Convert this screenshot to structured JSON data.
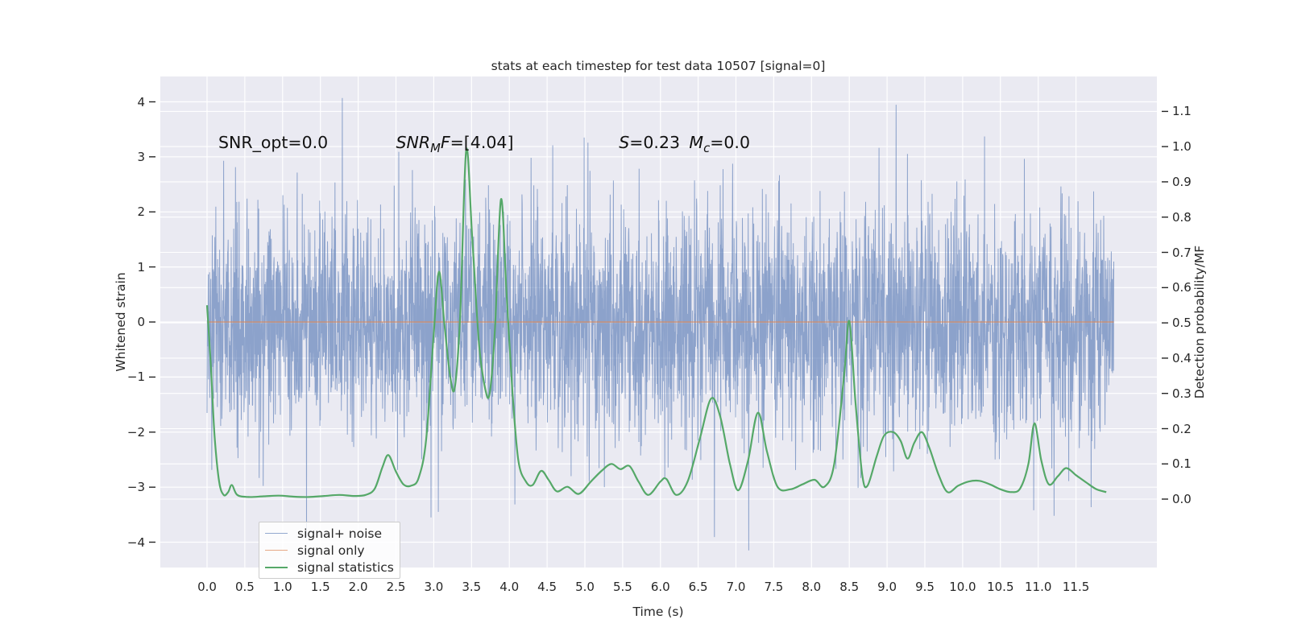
{
  "title": "stats at each timestep for test data 10507 [signal=0]",
  "colors": {
    "background": "#ffffff",
    "panel": "#eaeaf2",
    "grid": "#ffffff",
    "tick_mark": "#262626",
    "text": "#262626",
    "noise_blue": "#4C72B0",
    "signal_salmon": "#DD8452",
    "statistic_green": "#55A868",
    "legend_bg": "rgba(255,255,255,0.85)",
    "legend_border": "#cccccc"
  },
  "legend": {
    "position": "lower left",
    "entries": [
      {
        "label": "signal+ noise",
        "color": "#4C72B0",
        "alpha": 0.6,
        "line_width": 1.6
      },
      {
        "label": "signal only",
        "color": "#DD8452",
        "alpha": 0.7,
        "line_width": 1.6
      },
      {
        "label": "signal statistics",
        "color": "#55A868",
        "alpha": 1.0,
        "line_width": 2.0
      }
    ]
  },
  "chart_data": {
    "type": "line",
    "title": "stats at each timestep for test data 10507 [signal=0]",
    "xlabel": "Time (s)",
    "ylabel_left": "Whitened strain",
    "ylabel_right": "Detection probability/MF",
    "grid": true,
    "xlim": [
      -0.618,
      12.57
    ],
    "ylim_left": [
      -4.46,
      4.46
    ],
    "ylim_right": [
      -0.194,
      1.199
    ],
    "x_ticks": {
      "values": [
        0,
        0.5,
        1,
        1.5,
        2,
        2.5,
        3,
        3.5,
        4,
        4.5,
        5,
        5.5,
        6,
        6.5,
        7,
        7.5,
        8,
        8.5,
        9,
        9.5,
        10,
        10.5,
        11,
        11.5
      ],
      "labels": [
        "0.0",
        "0.5",
        "1.0",
        "1.5",
        "2.0",
        "2.5",
        "3.0",
        "3.5",
        "4.0",
        "4.5",
        "5.0",
        "5.5",
        "6.0",
        "6.5",
        "7.0",
        "7.5",
        "8.0",
        "8.5",
        "9.0",
        "9.5",
        "10.0",
        "10.5",
        "11.0",
        "11.5"
      ]
    },
    "left_ticks": {
      "values": [
        4,
        3,
        2,
        1,
        0,
        -1,
        -2,
        -3,
        -4
      ],
      "labels": [
        "4",
        "3",
        "2",
        "1",
        "0",
        "−1",
        "−2",
        "−3",
        "−4"
      ]
    },
    "right_ticks": {
      "values": [
        1.1,
        1.0,
        0.9,
        0.8,
        0.7,
        0.6,
        0.5,
        0.4,
        0.3,
        0.2,
        0.1,
        0.0
      ],
      "labels": [
        "1.1",
        "1.0",
        "0.9",
        "0.8",
        "0.7",
        "0.6",
        "0.5",
        "0.4",
        "0.3",
        "0.2",
        "0.1",
        "0.0"
      ]
    },
    "annotations": [
      {
        "name": "snr-opt-annotation",
        "t": 0.15,
        "y_strain": 3.2,
        "segments": [
          {
            "text": "SNR_opt=0.0",
            "italic": false,
            "sub": false
          }
        ]
      },
      {
        "name": "snr-mf-annotation",
        "t": 2.5,
        "y_strain": 3.2,
        "segments": [
          {
            "text": "SNR",
            "italic": true,
            "sub": false
          },
          {
            "text": "M",
            "italic": true,
            "sub": true
          },
          {
            "text": "F",
            "italic": true,
            "sub": false
          },
          {
            "text": "=[4.04]",
            "italic": false,
            "sub": false
          }
        ]
      },
      {
        "name": "s-annotation",
        "t": 5.45,
        "y_strain": 3.2,
        "segments": [
          {
            "text": "S",
            "italic": true,
            "sub": false
          },
          {
            "text": "=0.23",
            "italic": false,
            "sub": false
          }
        ]
      },
      {
        "name": "mc-annotation",
        "t": 6.38,
        "y_strain": 3.2,
        "segments": [
          {
            "text": "M",
            "italic": true,
            "sub": false
          },
          {
            "text": "c",
            "italic": true,
            "sub": true
          },
          {
            "text": "=0.0",
            "italic": false,
            "sub": false
          }
        ]
      }
    ],
    "series": [
      {
        "name": "signal+ noise",
        "axis": "left",
        "style": "noise",
        "color": "#4C72B0",
        "alpha": 0.6,
        "line_width": 1,
        "t_range": [
          0,
          12
        ],
        "n": 3600,
        "sigma": 1.03,
        "seed": 10507,
        "notable_spikes": [
          [
            1.79,
            4.07
          ],
          [
            3.06,
            -3.45
          ],
          [
            4.99,
            3.35
          ],
          [
            7.17,
            -4.15
          ],
          [
            10.29,
            3.37
          ],
          [
            10.94,
            -3.42
          ],
          [
            11.21,
            -3.52
          ]
        ]
      },
      {
        "name": "signal only",
        "axis": "left",
        "style": "flat",
        "color": "#DD8452",
        "alpha": 0.7,
        "line_width": 1.4,
        "t_range": [
          0,
          12
        ],
        "value": 0
      },
      {
        "name": "signal statistics",
        "axis": "right",
        "style": "smooth",
        "color": "#55A868",
        "alpha": 1.0,
        "line_width": 2.2,
        "points": [
          [
            0.0,
            0.55
          ],
          [
            0.05,
            0.38
          ],
          [
            0.1,
            0.18
          ],
          [
            0.16,
            0.05
          ],
          [
            0.22,
            0.012
          ],
          [
            0.28,
            0.02
          ],
          [
            0.33,
            0.04
          ],
          [
            0.4,
            0.012
          ],
          [
            0.55,
            0.006
          ],
          [
            0.75,
            0.008
          ],
          [
            0.95,
            0.01
          ],
          [
            1.15,
            0.007
          ],
          [
            1.35,
            0.006
          ],
          [
            1.55,
            0.009
          ],
          [
            1.75,
            0.012
          ],
          [
            1.95,
            0.009
          ],
          [
            2.1,
            0.012
          ],
          [
            2.22,
            0.03
          ],
          [
            2.32,
            0.09
          ],
          [
            2.4,
            0.125
          ],
          [
            2.5,
            0.078
          ],
          [
            2.6,
            0.042
          ],
          [
            2.7,
            0.038
          ],
          [
            2.8,
            0.06
          ],
          [
            2.9,
            0.17
          ],
          [
            3.0,
            0.47
          ],
          [
            3.07,
            0.645
          ],
          [
            3.14,
            0.5
          ],
          [
            3.22,
            0.345
          ],
          [
            3.28,
            0.318
          ],
          [
            3.35,
            0.52
          ],
          [
            3.43,
            0.99
          ],
          [
            3.51,
            0.74
          ],
          [
            3.6,
            0.44
          ],
          [
            3.68,
            0.315
          ],
          [
            3.74,
            0.3
          ],
          [
            3.81,
            0.48
          ],
          [
            3.89,
            0.85
          ],
          [
            3.96,
            0.6
          ],
          [
            4.04,
            0.31
          ],
          [
            4.12,
            0.11
          ],
          [
            4.22,
            0.05
          ],
          [
            4.31,
            0.04
          ],
          [
            4.42,
            0.08
          ],
          [
            4.52,
            0.055
          ],
          [
            4.63,
            0.022
          ],
          [
            4.77,
            0.035
          ],
          [
            4.92,
            0.015
          ],
          [
            5.08,
            0.05
          ],
          [
            5.22,
            0.08
          ],
          [
            5.35,
            0.1
          ],
          [
            5.47,
            0.085
          ],
          [
            5.59,
            0.094
          ],
          [
            5.71,
            0.05
          ],
          [
            5.84,
            0.012
          ],
          [
            6.0,
            0.05
          ],
          [
            6.08,
            0.057
          ],
          [
            6.21,
            0.012
          ],
          [
            6.36,
            0.05
          ],
          [
            6.52,
            0.17
          ],
          [
            6.67,
            0.285
          ],
          [
            6.79,
            0.235
          ],
          [
            6.92,
            0.1
          ],
          [
            7.03,
            0.025
          ],
          [
            7.16,
            0.11
          ],
          [
            7.29,
            0.245
          ],
          [
            7.41,
            0.135
          ],
          [
            7.55,
            0.035
          ],
          [
            7.72,
            0.028
          ],
          [
            7.88,
            0.042
          ],
          [
            8.04,
            0.055
          ],
          [
            8.17,
            0.035
          ],
          [
            8.3,
            0.1
          ],
          [
            8.43,
            0.35
          ],
          [
            8.5,
            0.505
          ],
          [
            8.58,
            0.28
          ],
          [
            8.67,
            0.07
          ],
          [
            8.74,
            0.038
          ],
          [
            8.86,
            0.12
          ],
          [
            8.96,
            0.18
          ],
          [
            9.08,
            0.19
          ],
          [
            9.18,
            0.165
          ],
          [
            9.27,
            0.115
          ],
          [
            9.36,
            0.16
          ],
          [
            9.46,
            0.19
          ],
          [
            9.56,
            0.145
          ],
          [
            9.68,
            0.07
          ],
          [
            9.8,
            0.02
          ],
          [
            9.94,
            0.038
          ],
          [
            10.08,
            0.05
          ],
          [
            10.22,
            0.052
          ],
          [
            10.36,
            0.042
          ],
          [
            10.5,
            0.028
          ],
          [
            10.64,
            0.02
          ],
          [
            10.76,
            0.03
          ],
          [
            10.87,
            0.1
          ],
          [
            10.95,
            0.215
          ],
          [
            11.04,
            0.11
          ],
          [
            11.14,
            0.042
          ],
          [
            11.26,
            0.065
          ],
          [
            11.37,
            0.088
          ],
          [
            11.5,
            0.068
          ],
          [
            11.63,
            0.048
          ],
          [
            11.77,
            0.028
          ],
          [
            11.9,
            0.02
          ]
        ]
      }
    ]
  }
}
